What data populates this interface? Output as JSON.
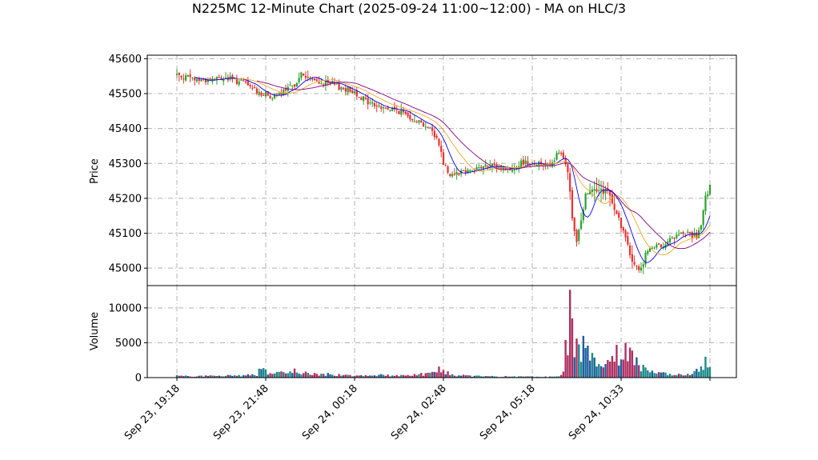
{
  "chart_data": {
    "type": "candlestick",
    "title": "N225MC 12-Minute Chart (2025-09-24 11:00~12:00) - MA on HLC/3",
    "price_panel": {
      "ylabel": "Price",
      "ylim": [
        44950,
        45610
      ],
      "yticks": [
        45000,
        45100,
        45200,
        45300,
        45400,
        45500,
        45600
      ],
      "yticklabels": [
        "45000",
        "45100",
        "45200",
        "45300",
        "45400",
        "45500",
        "45600"
      ]
    },
    "volume_panel": {
      "ylabel": "Volume",
      "ylim": [
        0,
        13200
      ],
      "yticks": [
        0,
        5000,
        10000
      ],
      "yticklabels": [
        "0",
        "5000",
        "10000"
      ]
    },
    "x_count": 240,
    "xticks": [
      0,
      40,
      80,
      120,
      160,
      200,
      240
    ],
    "xticklabels": [
      "Sep 23, 19:18",
      "Sep 23, 21:48",
      "Sep 24, 00:18",
      "Sep 24, 02:48",
      "Sep 24, 05:18",
      "Sep 24, 10:33",
      ""
    ],
    "grid": true,
    "colors": {
      "up": "#2ca02c",
      "down": "#e8312f",
      "ma_short": "#0000ee",
      "ma_mid": "#f5a623",
      "ma_long": "#800080",
      "vol_up": "#1f8a8a",
      "vol_down": "#b03060",
      "vol_neutral": "#1f5fa0"
    },
    "price_keypoints": [
      [
        0,
        45555
      ],
      [
        8,
        45540
      ],
      [
        15,
        45540
      ],
      [
        22,
        45545
      ],
      [
        30,
        45530
      ],
      [
        38,
        45500
      ],
      [
        44,
        45490
      ],
      [
        52,
        45520
      ],
      [
        56,
        45555
      ],
      [
        62,
        45535
      ],
      [
        70,
        45525
      ],
      [
        80,
        45505
      ],
      [
        86,
        45475
      ],
      [
        92,
        45460
      ],
      [
        100,
        45450
      ],
      [
        108,
        45425
      ],
      [
        114,
        45400
      ],
      [
        118,
        45360
      ],
      [
        120,
        45300
      ],
      [
        123,
        45270
      ],
      [
        130,
        45280
      ],
      [
        138,
        45290
      ],
      [
        146,
        45290
      ],
      [
        150,
        45280
      ],
      [
        156,
        45305
      ],
      [
        162,
        45300
      ],
      [
        168,
        45300
      ],
      [
        172,
        45330
      ],
      [
        174,
        45310
      ],
      [
        176,
        45280
      ],
      [
        178,
        45150
      ],
      [
        180,
        45070
      ],
      [
        184,
        45210
      ],
      [
        186,
        45230
      ],
      [
        190,
        45220
      ],
      [
        194,
        45220
      ],
      [
        198,
        45160
      ],
      [
        202,
        45080
      ],
      [
        205,
        45020
      ],
      [
        208,
        44990
      ],
      [
        212,
        45050
      ],
      [
        216,
        45060
      ],
      [
        222,
        45080
      ],
      [
        226,
        45095
      ],
      [
        230,
        45100
      ],
      [
        234,
        45090
      ],
      [
        236,
        45120
      ],
      [
        238,
        45200
      ],
      [
        240,
        45230
      ]
    ],
    "volume_keypoints": [
      [
        0,
        300
      ],
      [
        18,
        250
      ],
      [
        36,
        500
      ],
      [
        38,
        1600
      ],
      [
        42,
        500
      ],
      [
        54,
        1100
      ],
      [
        60,
        600
      ],
      [
        80,
        400
      ],
      [
        90,
        400
      ],
      [
        100,
        350
      ],
      [
        114,
        700
      ],
      [
        118,
        1400
      ],
      [
        124,
        400
      ],
      [
        140,
        200
      ],
      [
        160,
        150
      ],
      [
        172,
        150
      ],
      [
        176,
        1500
      ],
      [
        178,
        5200
      ],
      [
        180,
        7000
      ],
      [
        182,
        5500
      ],
      [
        184,
        4000
      ],
      [
        188,
        3500
      ],
      [
        192,
        3000
      ],
      [
        200,
        2800
      ],
      [
        204,
        4200
      ],
      [
        208,
        2000
      ],
      [
        214,
        800
      ],
      [
        224,
        400
      ],
      [
        232,
        600
      ],
      [
        236,
        1500
      ],
      [
        238,
        2600
      ],
      [
        240,
        1200
      ]
    ],
    "volume_spikes": [
      [
        175,
        5400
      ],
      [
        176,
        3200
      ],
      [
        177,
        12600
      ],
      [
        178,
        8500
      ],
      [
        180,
        5600
      ],
      [
        185,
        4600
      ],
      [
        198,
        4700
      ],
      [
        202,
        5000
      ],
      [
        204,
        4300
      ],
      [
        214,
        1000
      ],
      [
        238,
        3000
      ]
    ]
  }
}
